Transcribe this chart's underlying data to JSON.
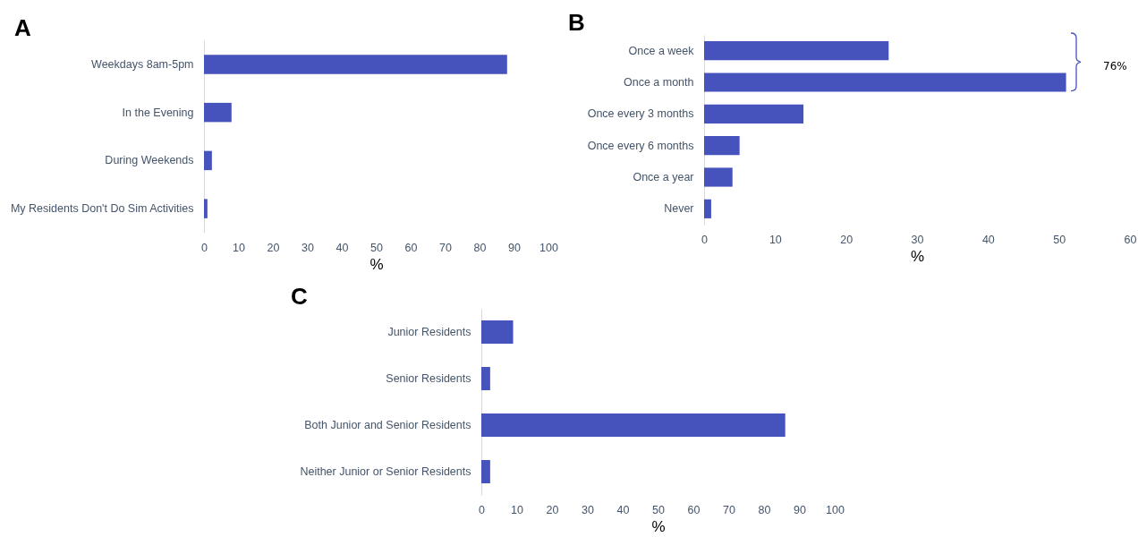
{
  "chart_data": [
    {
      "type": "bar",
      "orientation": "horizontal",
      "title": "A",
      "xlabel": "%",
      "categories": [
        "Weekdays 8am-5pm",
        "In the Evening",
        "During Weekends",
        "My Residents Don't Do Sim Activities"
      ],
      "values": [
        88,
        8,
        2.3,
        1
      ],
      "color": "#4653bd",
      "xlim": [
        0,
        100
      ],
      "xticks": [
        0,
        10,
        20,
        30,
        40,
        50,
        60,
        70,
        80,
        90,
        100
      ]
    },
    {
      "type": "bar",
      "orientation": "horizontal",
      "title": "B",
      "xlabel": "%",
      "categories": [
        "Once a week",
        "Once a month",
        "Once every 3 months",
        "Once every 6 months",
        "Once a year",
        "Never"
      ],
      "values": [
        26,
        51,
        14,
        5,
        4,
        1
      ],
      "color": "#4653bd",
      "xlim": [
        0,
        60
      ],
      "xticks": [
        0,
        10,
        20,
        30,
        40,
        50,
        60
      ],
      "annotations": [
        "76%"
      ]
    },
    {
      "type": "bar",
      "orientation": "horizontal",
      "title": "C",
      "xlabel": "%",
      "categories": [
        "Junior Residents",
        "Senior Residents",
        "Both Junior and Senior Residents",
        "Neither Junior or Senior Residents"
      ],
      "values": [
        9,
        2.5,
        86,
        2.5
      ],
      "color": "#4653bd",
      "xlim": [
        0,
        100
      ],
      "xticks": [
        0,
        10,
        20,
        30,
        40,
        50,
        60,
        70,
        80,
        90,
        100
      ]
    }
  ]
}
